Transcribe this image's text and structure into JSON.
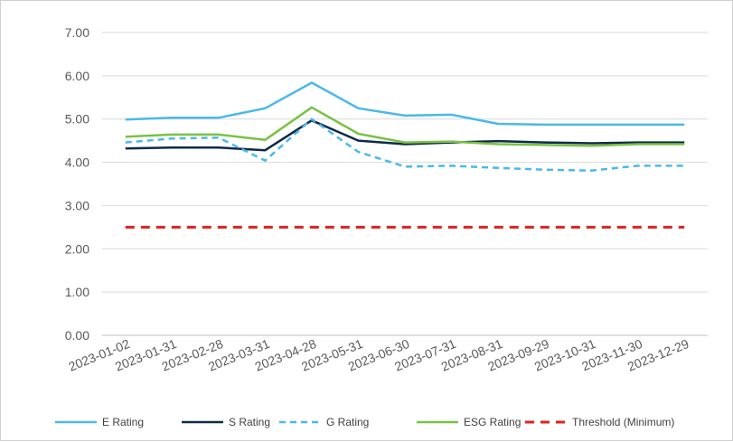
{
  "chart_data": {
    "type": "line",
    "title": "",
    "xlabel": "",
    "ylabel": "",
    "ylim": [
      0,
      7
    ],
    "yticks": [
      0,
      1,
      2,
      3,
      4,
      5,
      6,
      7
    ],
    "ytick_labels": [
      "0.00",
      "1.00",
      "2.00",
      "3.00",
      "4.00",
      "5.00",
      "6.00",
      "7.00"
    ],
    "categories": [
      "2023-01-02",
      "2023-01-31",
      "2023-02-28",
      "2023-03-31",
      "2023-04-28",
      "2023-05-31",
      "2023-06-30",
      "2023-07-31",
      "2023-08-31",
      "2023-09-29",
      "2023-10-31",
      "2023-11-30",
      "2023-12-29"
    ],
    "grid": "horizontal",
    "legend_position": "bottom",
    "series": [
      {
        "name": "E Rating",
        "color": "#4ab9e8",
        "dash": "solid",
        "values": [
          4.99,
          5.03,
          5.03,
          5.25,
          5.84,
          5.25,
          5.08,
          5.1,
          4.89,
          4.87,
          4.87,
          4.87,
          4.87
        ]
      },
      {
        "name": "S Rating",
        "color": "#0c2a4a",
        "dash": "solid",
        "values": [
          4.32,
          4.34,
          4.34,
          4.28,
          4.97,
          4.5,
          4.42,
          4.46,
          4.49,
          4.46,
          4.44,
          4.46,
          4.46
        ]
      },
      {
        "name": "G Rating",
        "color": "#4ab9e8",
        "dash": "dashed",
        "values": [
          4.46,
          4.55,
          4.57,
          4.04,
          5.0,
          4.24,
          3.9,
          3.92,
          3.87,
          3.83,
          3.81,
          3.92,
          3.92
        ]
      },
      {
        "name": "ESG Rating",
        "color": "#7ac143",
        "dash": "solid",
        "values": [
          4.59,
          4.64,
          4.64,
          4.52,
          5.27,
          4.66,
          4.46,
          4.48,
          4.42,
          4.4,
          4.38,
          4.42,
          4.42
        ]
      },
      {
        "name": "Threshold (Minimum)",
        "color": "#e02020",
        "dash": "dashed",
        "values": [
          2.5,
          2.5,
          2.5,
          2.5,
          2.5,
          2.5,
          2.5,
          2.5,
          2.5,
          2.5,
          2.5,
          2.5,
          2.5
        ]
      }
    ]
  }
}
